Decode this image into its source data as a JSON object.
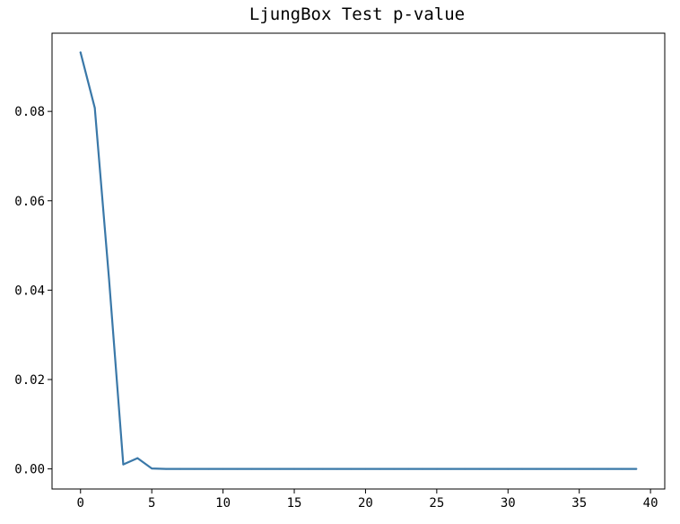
{
  "chart_data": {
    "type": "line",
    "title": "LjungBox Test p-value",
    "xlabel": "",
    "ylabel": "",
    "xlim": [
      -2,
      41
    ],
    "ylim": [
      -0.0045,
      0.0975
    ],
    "x_ticks": [
      0,
      5,
      10,
      15,
      20,
      25,
      30,
      35,
      40
    ],
    "x_tick_labels": [
      "0",
      "5",
      "10",
      "15",
      "20",
      "25",
      "30",
      "35",
      "40"
    ],
    "y_ticks": [
      0.0,
      0.02,
      0.04,
      0.06,
      0.08
    ],
    "y_tick_labels": [
      "0.00",
      "0.02",
      "0.04",
      "0.06",
      "0.08"
    ],
    "grid": false,
    "series": [
      {
        "color": "#3a78a8",
        "x": [
          0,
          1,
          2,
          3,
          4,
          5,
          6,
          7,
          8,
          9,
          10,
          11,
          12,
          13,
          14,
          15,
          16,
          17,
          18,
          19,
          20,
          21,
          22,
          23,
          24,
          25,
          26,
          27,
          28,
          29,
          30,
          31,
          32,
          33,
          34,
          35,
          36,
          37,
          38,
          39
        ],
        "values": [
          0.0932,
          0.0808,
          0.0425,
          0.001,
          0.0024,
          0.0001,
          0.0,
          0.0,
          0.0,
          0.0,
          0.0,
          0.0,
          0.0,
          0.0,
          0.0,
          0.0,
          0.0,
          0.0,
          0.0,
          0.0,
          0.0,
          0.0,
          0.0,
          0.0,
          0.0,
          0.0,
          0.0,
          0.0,
          0.0,
          0.0,
          0.0,
          0.0,
          0.0,
          0.0,
          0.0,
          0.0,
          0.0,
          0.0,
          0.0,
          0.0
        ]
      }
    ]
  }
}
